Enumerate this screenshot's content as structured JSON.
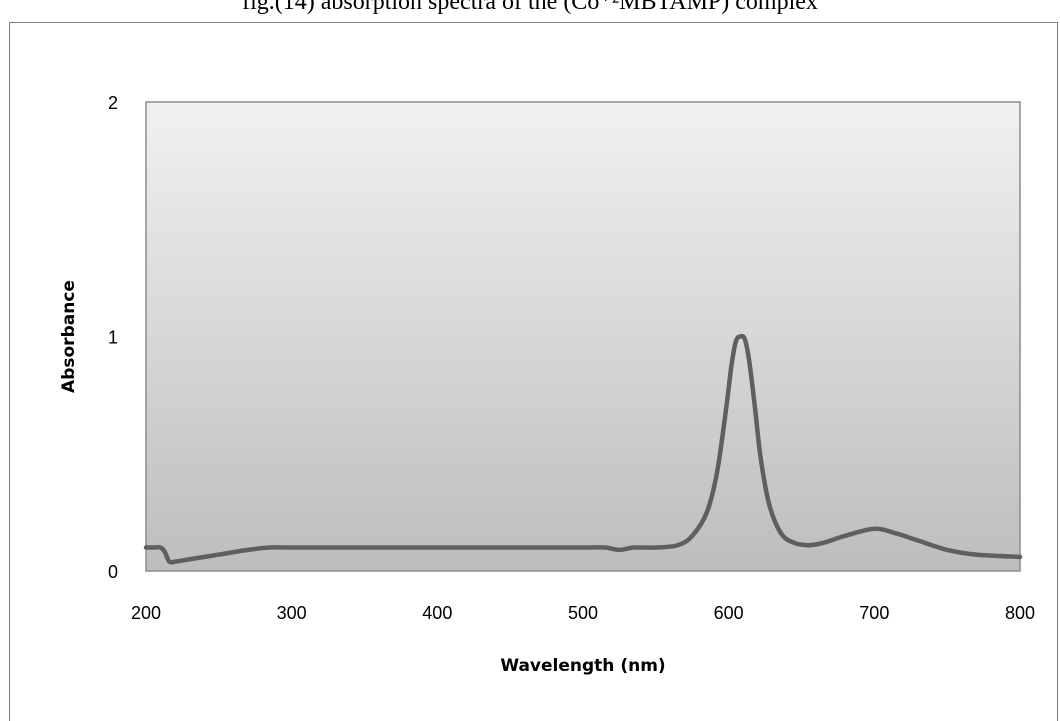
{
  "caption": "fig.(14) absorption spectra of the (Co⁺²MBTAMP) complex",
  "chart_data": {
    "type": "line",
    "title": "",
    "xlabel": "Wavelength (nm)",
    "ylabel": "Absorbance",
    "xlim": [
      200,
      800
    ],
    "ylim": [
      0,
      2
    ],
    "xticks": [
      200,
      300,
      400,
      500,
      600,
      700,
      800
    ],
    "yticks": [
      0,
      1,
      2
    ],
    "grid": false,
    "legend": "none",
    "plot_background": "gradient light gray to darker gray",
    "colors": {
      "line": "#5f5f5f",
      "plot_top": "#f1f1f1",
      "plot_bottom": "#bdbdbd",
      "plot_border": "#8c8c8c"
    },
    "series": [
      {
        "x": [
          200,
          205,
          210,
          213,
          216,
          220,
          230,
          250,
          270,
          285,
          300,
          350,
          400,
          450,
          500,
          515,
          525,
          535,
          550,
          565,
          575,
          585,
          592,
          598,
          602,
          605,
          608,
          611,
          614,
          618,
          622,
          628,
          636,
          645,
          655,
          665,
          680,
          700,
          715,
          730,
          750,
          770,
          800
        ],
        "y": [
          0.1,
          0.1,
          0.1,
          0.08,
          0.04,
          0.04,
          0.05,
          0.07,
          0.09,
          0.1,
          0.1,
          0.1,
          0.1,
          0.1,
          0.1,
          0.1,
          0.09,
          0.1,
          0.1,
          0.11,
          0.15,
          0.25,
          0.42,
          0.68,
          0.88,
          0.98,
          1.0,
          0.99,
          0.9,
          0.7,
          0.48,
          0.28,
          0.16,
          0.12,
          0.11,
          0.12,
          0.15,
          0.18,
          0.16,
          0.13,
          0.09,
          0.07,
          0.06
        ]
      }
    ]
  }
}
